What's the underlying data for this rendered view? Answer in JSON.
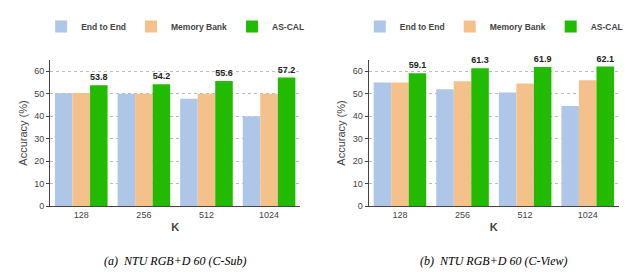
{
  "chart_data": [
    {
      "type": "bar",
      "title": "(a)  NTU RGB+D 60 (C-Sub)",
      "xlabel": "K",
      "ylabel": "Accuracy (%)",
      "categories": [
        "128",
        "256",
        "512",
        "1024"
      ],
      "series": [
        {
          "name": "End to End",
          "color": "#aec6e8",
          "values": [
            50.2,
            50.0,
            47.8,
            40.0
          ]
        },
        {
          "name": "Memory Bank",
          "color": "#f5c18a",
          "values": [
            50.3,
            50.0,
            50.0,
            50.0
          ]
        },
        {
          "name": "AS-CAL",
          "color": "#22bb00",
          "values": [
            53.8,
            54.2,
            55.6,
            57.2
          ],
          "data_labels": true
        }
      ],
      "ylim": [
        0,
        65
      ],
      "yticks": [
        0,
        10,
        20,
        30,
        40,
        50,
        60
      ],
      "grid": true,
      "legend": "top"
    },
    {
      "type": "bar",
      "title": "(b)  NTU RGB+D 60 (C-View)",
      "xlabel": "K",
      "ylabel": "Accuracy (%)",
      "categories": [
        "128",
        "256",
        "512",
        "1024"
      ],
      "series": [
        {
          "name": "End to End",
          "color": "#aec6e8",
          "values": [
            55.0,
            52.0,
            50.5,
            44.5
          ]
        },
        {
          "name": "Memory Bank",
          "color": "#f5c18a",
          "values": [
            55.0,
            55.5,
            54.5,
            56.0
          ]
        },
        {
          "name": "AS-CAL",
          "color": "#22bb00",
          "values": [
            59.1,
            61.3,
            61.9,
            62.1
          ],
          "data_labels": true
        }
      ],
      "ylim": [
        0,
        65
      ],
      "yticks": [
        0,
        10,
        20,
        30,
        40,
        50,
        60
      ],
      "grid": true,
      "legend": "top"
    }
  ]
}
